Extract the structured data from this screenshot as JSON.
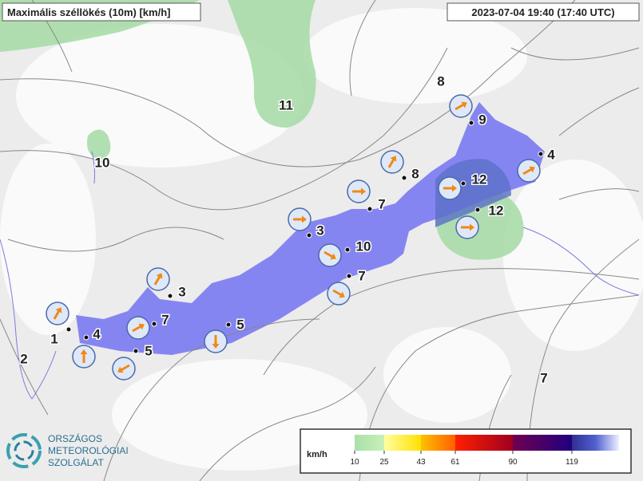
{
  "header": {
    "title": "Maximális széllökés (10m) [km/h]",
    "timestamp": "2023-07-04 19:40 (17:40 UTC)"
  },
  "stations": [
    1,
    4,
    5,
    7,
    3,
    5,
    3,
    10,
    7,
    7,
    8,
    12,
    12,
    9,
    4
  ],
  "area_labels": [
    8,
    11,
    10,
    2,
    7
  ],
  "legend": {
    "unit": "km/h",
    "ticks": [
      10,
      25,
      43,
      61,
      90,
      119
    ]
  },
  "logo": {
    "lines": [
      "ORSZÁGOS",
      "METEOROLÓGIAI",
      "SZOLGÁLAT"
    ]
  }
}
